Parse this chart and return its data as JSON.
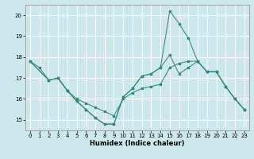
{
  "xlabel": "Humidex (Indice chaleur)",
  "background_color": "#cde8ec",
  "grid_color": "#ffffff",
  "line_color": "#2e8b7a",
  "xlim": [
    -0.5,
    23.5
  ],
  "ylim": [
    14.5,
    20.5
  ],
  "yticks": [
    15,
    16,
    17,
    18,
    19,
    20
  ],
  "xticks": [
    0,
    1,
    2,
    3,
    4,
    5,
    6,
    7,
    8,
    9,
    10,
    11,
    12,
    13,
    14,
    15,
    16,
    17,
    18,
    19,
    20,
    21,
    22,
    23
  ],
  "line1_x": [
    0,
    1,
    2,
    3,
    4,
    5,
    6,
    7,
    8,
    9,
    10,
    11,
    12,
    13,
    14,
    15,
    16,
    17,
    18,
    19,
    20,
    21,
    22,
    23
  ],
  "line1_y": [
    17.8,
    17.5,
    16.9,
    17.0,
    16.4,
    15.9,
    15.5,
    15.1,
    14.8,
    14.8,
    16.1,
    16.5,
    17.1,
    17.2,
    17.5,
    18.1,
    17.2,
    17.5,
    17.8,
    17.3,
    17.3,
    16.6,
    16.0,
    15.5
  ],
  "line2_x": [
    0,
    2,
    3,
    4,
    5,
    6,
    7,
    8,
    9,
    10,
    11,
    12,
    13,
    14,
    15,
    16,
    17,
    18,
    19,
    20,
    21,
    22,
    23
  ],
  "line2_y": [
    17.8,
    16.9,
    17.0,
    16.4,
    16.0,
    15.8,
    15.6,
    15.4,
    15.2,
    16.0,
    16.3,
    16.5,
    16.6,
    16.7,
    17.5,
    17.7,
    17.8,
    17.8,
    17.3,
    17.3,
    16.6,
    16.0,
    15.5
  ],
  "line3_x": [
    0,
    2,
    3,
    4,
    5,
    6,
    7,
    8,
    9,
    10,
    11,
    12,
    13,
    14,
    15,
    16,
    17,
    18,
    19,
    20,
    21,
    22,
    23
  ],
  "line3_y": [
    17.8,
    16.9,
    17.0,
    16.4,
    15.9,
    15.5,
    15.1,
    14.8,
    14.8,
    16.1,
    16.5,
    17.1,
    17.2,
    17.5,
    20.2,
    19.6,
    18.9,
    17.8,
    17.3,
    17.3,
    16.6,
    16.0,
    15.5
  ]
}
